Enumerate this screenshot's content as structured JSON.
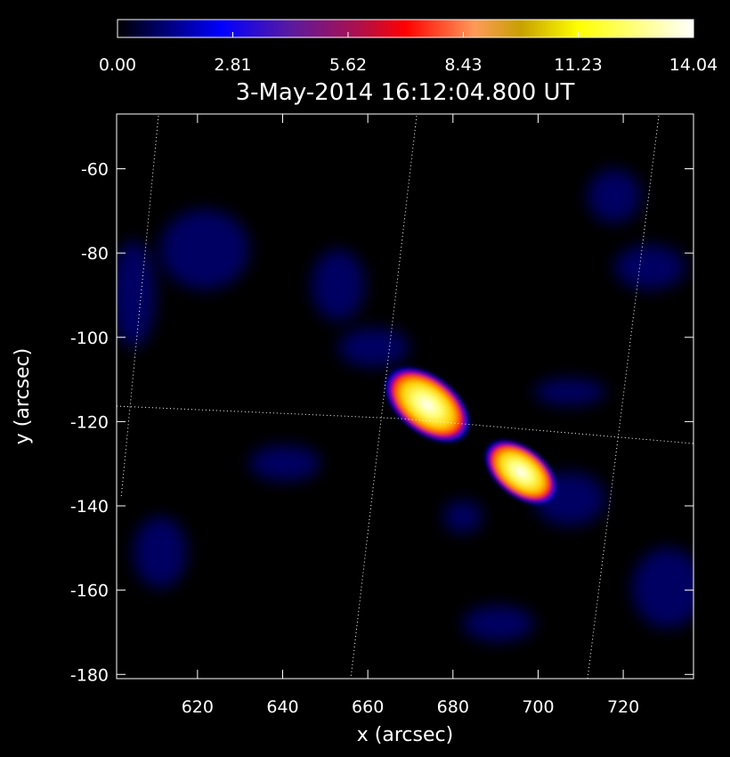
{
  "chart_data": {
    "type": "heatmap",
    "title": "3-May-2014 16:12:04.800 UT",
    "x_label": "x (arcsec)",
    "y_label": "y (arcsec)",
    "xlim": [
      601,
      736.5
    ],
    "ylim": [
      -181,
      -47
    ],
    "xticks": [
      620,
      640,
      660,
      680,
      700,
      720
    ],
    "yticks": [
      -180,
      -160,
      -140,
      -120,
      -100,
      -80,
      -60
    ],
    "zlim": [
      0,
      14.04
    ],
    "colorbar_ticks": [
      {
        "value": 0,
        "label": "0.00"
      },
      {
        "value": 2.81,
        "label": "2.81"
      },
      {
        "value": 5.62,
        "label": "5.62"
      },
      {
        "value": 8.43,
        "label": "8.43"
      },
      {
        "value": 11.23,
        "label": "11.23"
      },
      {
        "value": 14.04,
        "label": "14.04"
      }
    ],
    "sources": [
      {
        "x": 674,
        "y": -116,
        "peak": 14.04
      },
      {
        "x": 696,
        "y": -132,
        "peak": 12
      }
    ]
  }
}
